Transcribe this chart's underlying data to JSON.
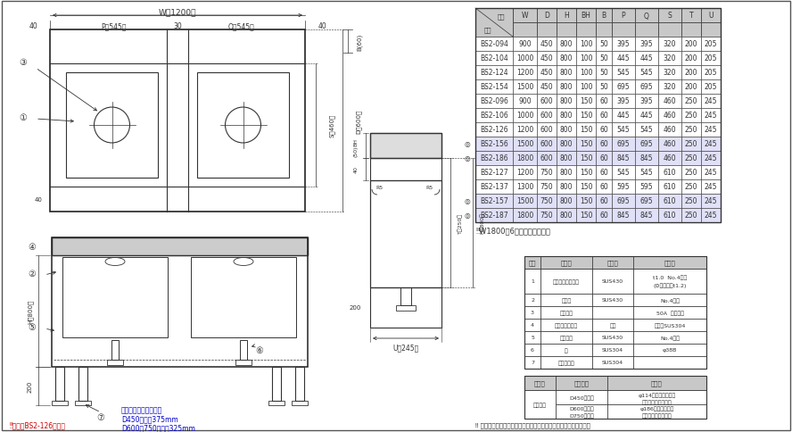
{
  "bg_color": "#ffffff",
  "line_color": "#333333",
  "table1_headers": [
    "W",
    "D",
    "H",
    "BH",
    "B",
    "P",
    "Q",
    "S",
    "T",
    "U"
  ],
  "table1_rows": [
    [
      "BS2-094",
      "900",
      "450",
      "800",
      "100",
      "50",
      "395",
      "395",
      "320",
      "200",
      "205"
    ],
    [
      "BS2-104",
      "1000",
      "450",
      "800",
      "100",
      "50",
      "445",
      "445",
      "320",
      "200",
      "205"
    ],
    [
      "BS2-124",
      "1200",
      "450",
      "800",
      "100",
      "50",
      "545",
      "545",
      "320",
      "200",
      "205"
    ],
    [
      "BS2-154",
      "1500",
      "450",
      "800",
      "100",
      "50",
      "695",
      "695",
      "320",
      "200",
      "205"
    ],
    [
      "BS2-096",
      "900",
      "600",
      "800",
      "150",
      "60",
      "395",
      "395",
      "460",
      "250",
      "245"
    ],
    [
      "BS2-106",
      "1000",
      "600",
      "800",
      "150",
      "60",
      "445",
      "445",
      "460",
      "250",
      "245"
    ],
    [
      "BS2-126",
      "1200",
      "600",
      "800",
      "150",
      "60",
      "545",
      "545",
      "460",
      "250",
      "245"
    ],
    [
      "BS2-156",
      "1500",
      "600",
      "800",
      "150",
      "60",
      "695",
      "695",
      "460",
      "250",
      "245"
    ],
    [
      "BS2-186",
      "1800",
      "600",
      "800",
      "150",
      "60",
      "845",
      "845",
      "460",
      "250",
      "245"
    ],
    [
      "BS2-127",
      "1200",
      "750",
      "800",
      "150",
      "60",
      "545",
      "545",
      "610",
      "250",
      "245"
    ],
    [
      "BS2-137",
      "1300",
      "750",
      "800",
      "150",
      "60",
      "595",
      "595",
      "610",
      "250",
      "245"
    ],
    [
      "BS2-157",
      "1500",
      "750",
      "800",
      "150",
      "60",
      "695",
      "695",
      "610",
      "250",
      "245"
    ],
    [
      "BS2-187",
      "1800",
      "750",
      "800",
      "150",
      "60",
      "845",
      "845",
      "610",
      "250",
      "245"
    ]
  ],
  "circle_rows": [
    7,
    8,
    11,
    12
  ],
  "table2_headers": [
    "番号",
    "品　名",
    "材　質",
    "備　号"
  ],
  "table2_rows": [
    [
      "1",
      "トップ（シンク）",
      "SUS430",
      "t1.0  No.4仕上\n(⊙印型式はt1.2)"
    ],
    [
      "2",
      "化粧板",
      "SUS430",
      "No.4仕上"
    ],
    [
      "3",
      "排水金属",
      "",
      "50A  別表参照"
    ],
    [
      "4",
      "オーバーフロー",
      "居ビ",
      "金属：SUS304"
    ],
    [
      "5",
      "スノコ板",
      "SUS430",
      "No.4仕上"
    ],
    [
      "6",
      "脚",
      "SUS304",
      "φ38B"
    ],
    [
      "7",
      "アジャスト",
      "SUS304",
      ""
    ]
  ],
  "table2_row_heights": [
    2,
    1,
    1,
    1,
    1,
    1,
    1
  ],
  "table3_headers": [
    "品　名",
    "適用機種",
    "備　号"
  ],
  "table3_rows": [
    [
      "排水金属",
      "D450タイプ",
      "φ114小キングドレン\n（ポリプロピレン）"
    ],
    [
      "",
      "D600タイプ\nD750タイプ",
      "φ186キングドレン\n（ポリプロピレン）"
    ]
  ],
  "note_w1800": "‼W1800は6本脚となります。",
  "note_bottom_left": "‼本図はBS2-126を示す",
  "note_bottom_right": "‼ 改善の為、仕様及び外観を予告なしに変更することがあります。",
  "note_snokoita": "スノコ板上面有効高さ",
  "note_d450": "D450タイプ375mm",
  "note_d600": "D600・750タイプ325mm"
}
